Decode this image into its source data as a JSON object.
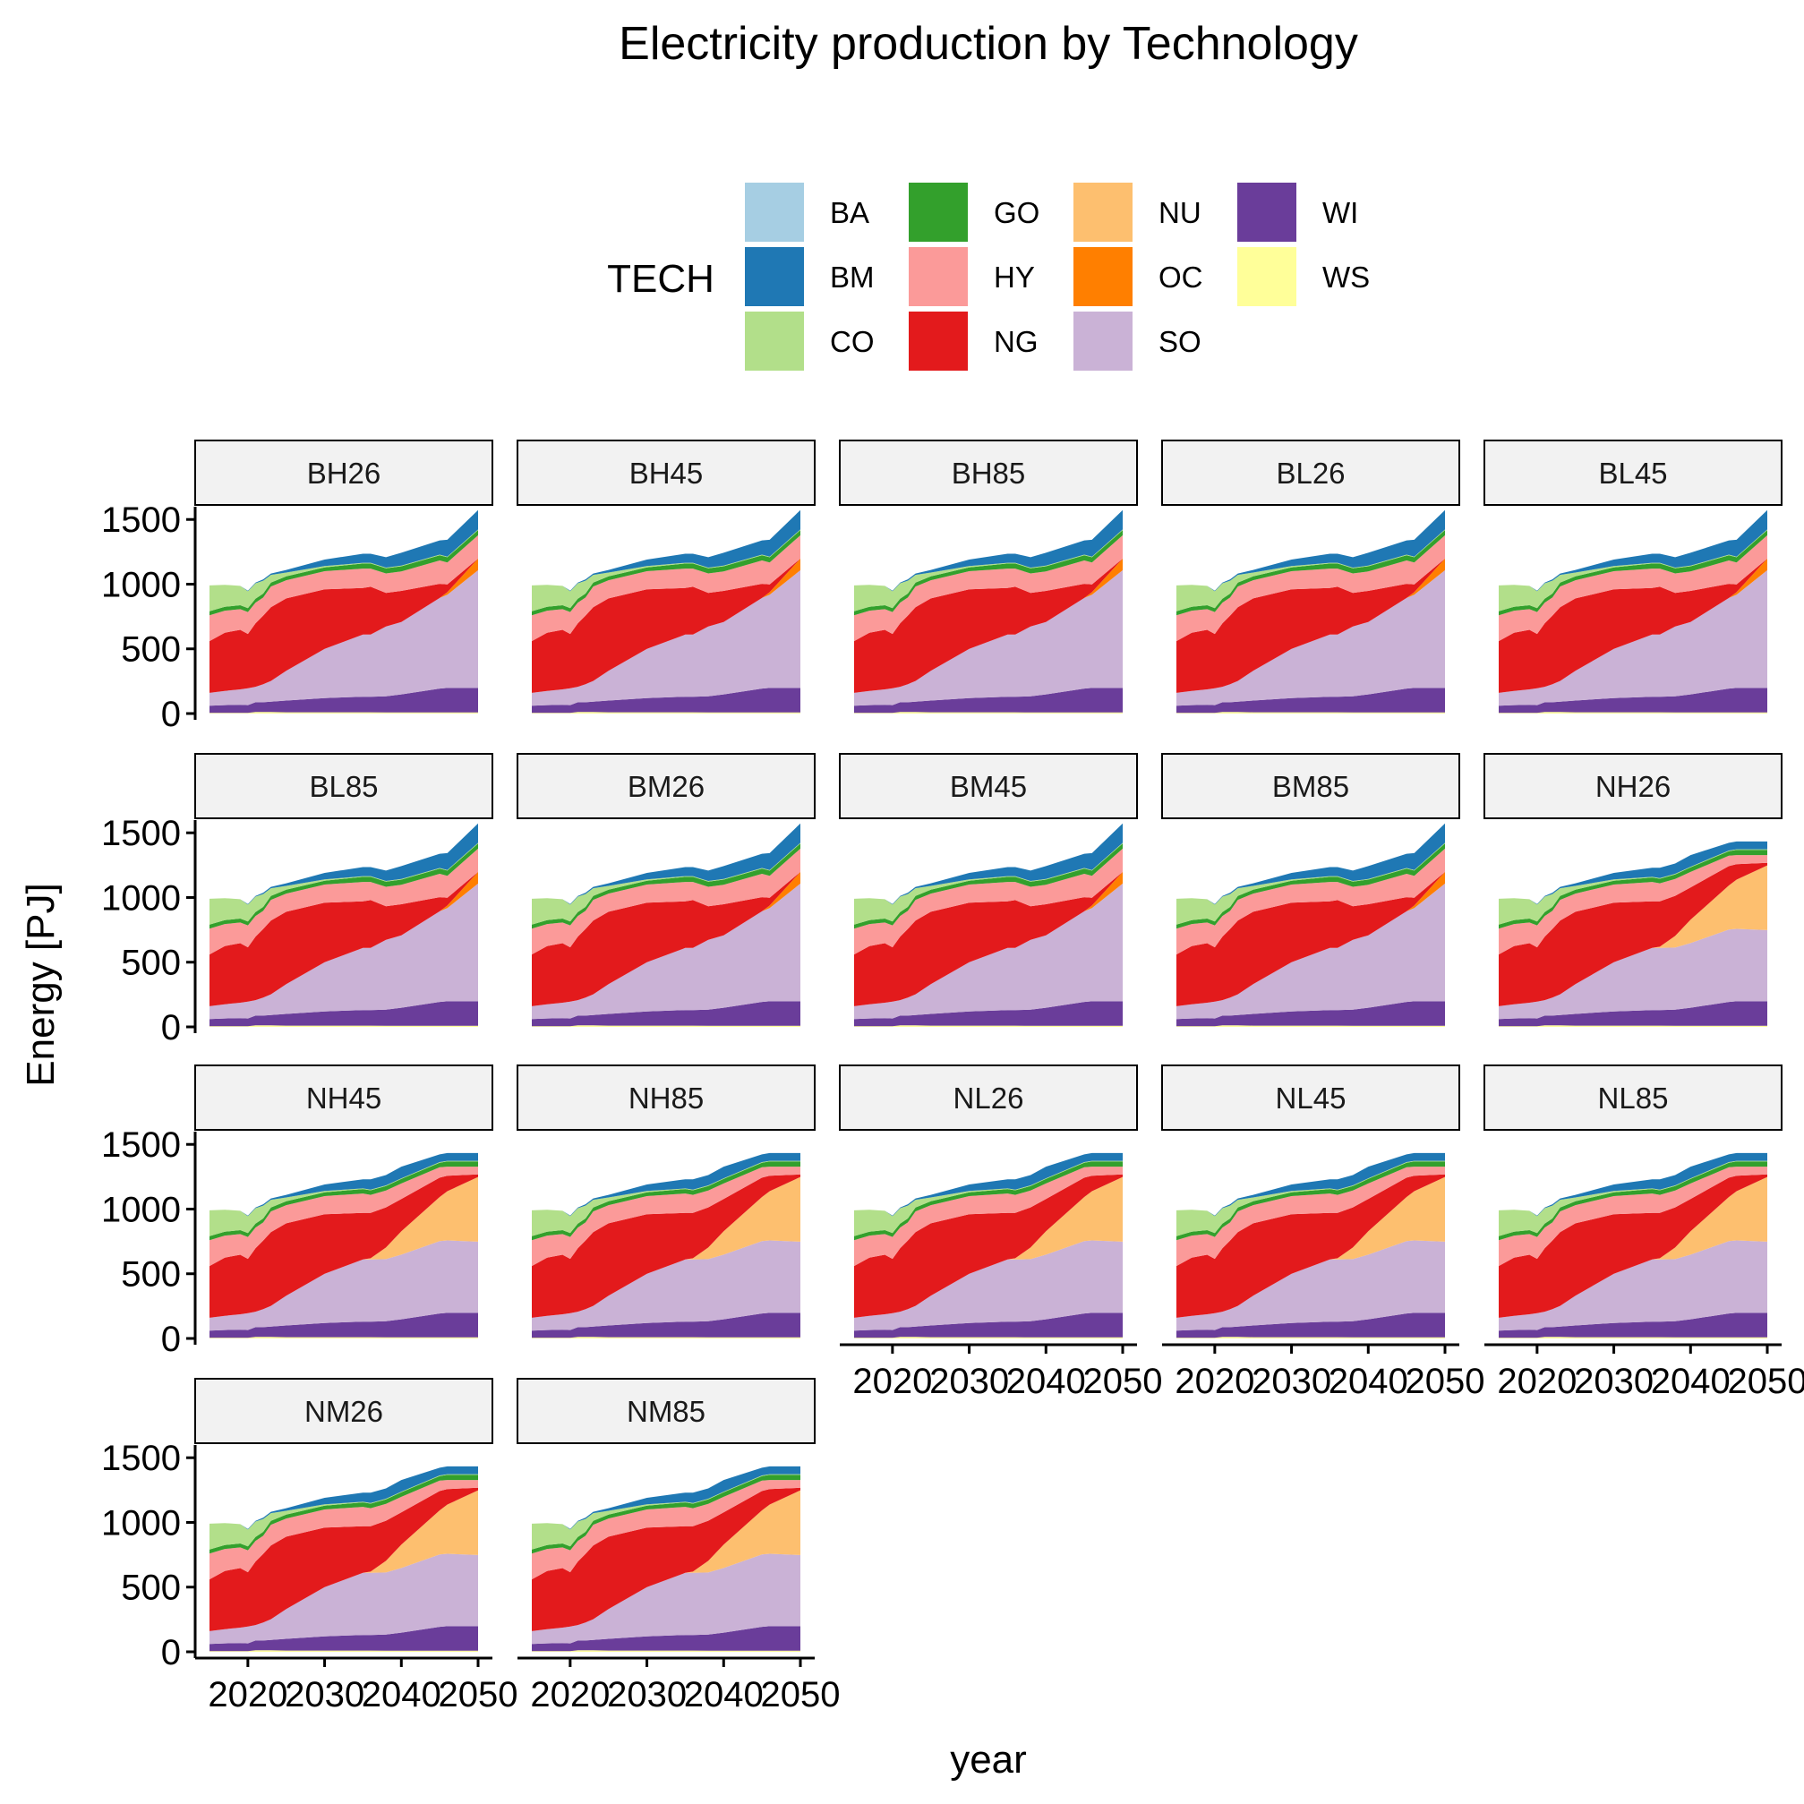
{
  "chart_data": {
    "type": "area",
    "title": "Electricity production by Technology",
    "xlabel": "year",
    "ylabel": "Energy [PJ]",
    "legend_title": "TECH",
    "legend_position": "top",
    "grid": false,
    "xlim": [
      2015,
      2050
    ],
    "ylim": [
      0,
      1500
    ],
    "x_ticks": [
      2020,
      2030,
      2040,
      2050
    ],
    "y_ticks": [
      0,
      500,
      1000,
      1500
    ],
    "tech_order": [
      "BA",
      "BM",
      "CO",
      "GO",
      "HY",
      "NG",
      "NU",
      "OC",
      "SO",
      "WI",
      "WS"
    ],
    "stack_order_bottom_to_top": [
      "WS",
      "WI",
      "SO",
      "NU",
      "OC",
      "NG",
      "HY",
      "GO",
      "CO",
      "BM",
      "BA"
    ],
    "colors": {
      "BA": "#a6cee3",
      "BM": "#1f78b4",
      "CO": "#b2df8a",
      "GO": "#33a02c",
      "HY": "#fb9a99",
      "NG": "#e31a1c",
      "NU": "#fdbf6f",
      "OC": "#ff7f00",
      "SO": "#cab2d6",
      "WI": "#6a3d9a",
      "WS": "#ffff99"
    },
    "years": [
      2015,
      2017,
      2019,
      2020,
      2021,
      2022,
      2023,
      2025,
      2030,
      2035,
      2036,
      2038,
      2040,
      2045,
      2046,
      2050
    ],
    "scenario_families": {
      "B": {
        "WS": [
          5,
          5,
          5,
          5,
          12,
          12,
          12,
          10,
          10,
          10,
          10,
          8,
          8,
          8,
          8,
          8
        ],
        "WI": [
          55,
          60,
          62,
          60,
          75,
          75,
          80,
          90,
          110,
          120,
          120,
          125,
          140,
          185,
          190,
          190
        ],
        "SO": [
          100,
          110,
          120,
          130,
          120,
          140,
          160,
          230,
          380,
          480,
          480,
          540,
          560,
          700,
          720,
          910
        ],
        "NU": [
          0,
          0,
          0,
          0,
          0,
          0,
          0,
          0,
          0,
          0,
          0,
          0,
          0,
          0,
          0,
          0
        ],
        "OC": [
          0,
          0,
          0,
          0,
          0,
          0,
          0,
          0,
          0,
          0,
          0,
          0,
          0,
          0,
          20,
          90
        ],
        "NG": [
          400,
          450,
          460,
          420,
          490,
          530,
          570,
          560,
          460,
          360,
          370,
          260,
          240,
          110,
          60,
          0
        ],
        "HY": [
          200,
          170,
          160,
          170,
          160,
          140,
          160,
          140,
          140,
          150,
          140,
          150,
          150,
          180,
          170,
          180
        ],
        "GO": [
          30,
          30,
          30,
          30,
          30,
          30,
          30,
          30,
          30,
          40,
          40,
          40,
          40,
          40,
          40,
          40
        ],
        "CO": [
          200,
          170,
          150,
          130,
          120,
          100,
          60,
          30,
          10,
          5,
          5,
          5,
          5,
          5,
          5,
          5
        ],
        "BM": [
          0,
          0,
          0,
          5,
          5,
          10,
          10,
          20,
          50,
          70,
          70,
          80,
          100,
          110,
          130,
          150
        ],
        "BA": [
          0,
          0,
          0,
          0,
          0,
          0,
          0,
          0,
          0,
          0,
          0,
          0,
          0,
          0,
          0,
          0
        ]
      },
      "N": {
        "WS": [
          5,
          5,
          5,
          5,
          12,
          12,
          12,
          10,
          10,
          10,
          10,
          8,
          8,
          8,
          8,
          8
        ],
        "WI": [
          55,
          60,
          62,
          60,
          75,
          75,
          80,
          90,
          110,
          120,
          120,
          125,
          140,
          185,
          190,
          190
        ],
        "SO": [
          100,
          110,
          120,
          130,
          120,
          140,
          160,
          230,
          380,
          480,
          480,
          480,
          500,
          560,
          560,
          550
        ],
        "NU": [
          0,
          0,
          0,
          0,
          0,
          0,
          0,
          0,
          0,
          0,
          10,
          90,
          180,
          340,
          380,
          500
        ],
        "OC": [
          0,
          0,
          0,
          0,
          0,
          0,
          0,
          0,
          0,
          0,
          0,
          0,
          0,
          0,
          0,
          0
        ],
        "NG": [
          400,
          450,
          460,
          420,
          490,
          530,
          570,
          560,
          460,
          360,
          350,
          310,
          250,
          150,
          120,
          20
        ],
        "HY": [
          200,
          170,
          160,
          170,
          160,
          140,
          160,
          140,
          140,
          150,
          140,
          130,
          120,
          80,
          70,
          60
        ],
        "GO": [
          30,
          30,
          30,
          30,
          30,
          30,
          30,
          30,
          30,
          35,
          35,
          35,
          35,
          35,
          40,
          40
        ],
        "CO": [
          200,
          170,
          150,
          130,
          120,
          100,
          60,
          30,
          10,
          5,
          5,
          5,
          5,
          5,
          5,
          5
        ],
        "BM": [
          0,
          0,
          0,
          5,
          5,
          10,
          10,
          20,
          50,
          70,
          80,
          80,
          90,
          60,
          60,
          60
        ],
        "BA": [
          0,
          0,
          0,
          0,
          0,
          0,
          0,
          0,
          0,
          0,
          0,
          0,
          0,
          0,
          0,
          0
        ]
      }
    },
    "panels": [
      {
        "name": "BH26",
        "family": "B"
      },
      {
        "name": "BH45",
        "family": "B"
      },
      {
        "name": "BH85",
        "family": "B"
      },
      {
        "name": "BL26",
        "family": "B"
      },
      {
        "name": "BL45",
        "family": "B"
      },
      {
        "name": "BL85",
        "family": "B"
      },
      {
        "name": "BM26",
        "family": "B"
      },
      {
        "name": "BM45",
        "family": "B"
      },
      {
        "name": "BM85",
        "family": "B"
      },
      {
        "name": "NH26",
        "family": "N"
      },
      {
        "name": "NH45",
        "family": "N"
      },
      {
        "name": "NH85",
        "family": "N"
      },
      {
        "name": "NL26",
        "family": "N"
      },
      {
        "name": "NL45",
        "family": "N"
      },
      {
        "name": "NL85",
        "family": "N"
      },
      {
        "name": "NM26",
        "family": "N"
      },
      {
        "name": "NM85",
        "family": "N"
      }
    ]
  }
}
